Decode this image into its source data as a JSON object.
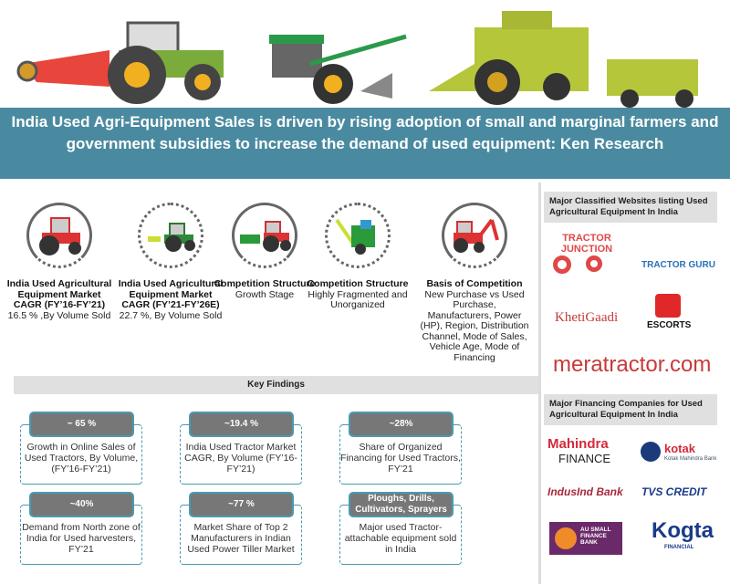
{
  "banner": {
    "title": "India Used Agri-Equipment Sales is driven by rising adoption of small and marginal farmers and government subsidies to increase the demand of used equipment: Ken Research"
  },
  "stats": [
    {
      "title": "India Used Agricultural Equipment Market CAGR (FY’16-FY’21)",
      "value": "16.5  % ,By Volume Sold"
    },
    {
      "title": "India Used Agricultural Equipment Market CAGR (FY’21-FY’26E)",
      "value": "22.7  %, By Volume Sold"
    },
    {
      "title": "Competition Structure",
      "value": "Growth Stage"
    },
    {
      "title": "Competition Structure",
      "value": "Highly Fragmented and Unorganized"
    },
    {
      "title": "Basis of Competition",
      "value": "New Purchase vs Used Purchase, Manufacturers, Power (HP), Region, Distribution Channel, Mode of Sales, Vehicle Age, Mode of Financing"
    }
  ],
  "key_findings": {
    "title": "Key Findings",
    "items": [
      {
        "badge": "~ 65 %",
        "text": "Growth in Online Sales of Used Tractors, By Volume, (FY’16-FY’21)"
      },
      {
        "badge": "~19.4 %",
        "text": "India Used Tractor Market CAGR, By Volume (FY’16-FY’21)"
      },
      {
        "badge": "~28%",
        "text": "Share of Organized Financing for Used Tractors, FY’21"
      },
      {
        "badge": "~40%",
        "text": "Demand from North zone of India for Used harvesters, FY’21"
      },
      {
        "badge": "~77 %",
        "text": "Market Share of Top 2 Manufacturers in Indian Used Power Tiller Market"
      },
      {
        "badge": "Ploughs, Drills, Cultivators, Sprayers",
        "text": "Major used Tractor-attachable equipment sold in India"
      }
    ]
  },
  "classifieds": {
    "title": "Major Classified Websites listing Used Agricultural Equipment In India",
    "logos": [
      "TRACTOR JUNCTION",
      "TRACTOR GURU",
      "KhetiGaadi",
      "ESCORTS",
      "meratractor.com"
    ]
  },
  "financing": {
    "title": "Major Financing Companies for Used Agricultural Equipment In India",
    "logos": [
      "Mahindra",
      "FINANCE",
      "kotak",
      "Kotak Mahindra Bank",
      "IndusInd Bank",
      "TVS CREDIT",
      "AU SMALL FINANCE BANK",
      "Kogta",
      "FINANCIAL"
    ]
  },
  "colors": {
    "banner": "#4a8aa0",
    "card_border": "#4a9ab0",
    "badge": "#777777"
  }
}
